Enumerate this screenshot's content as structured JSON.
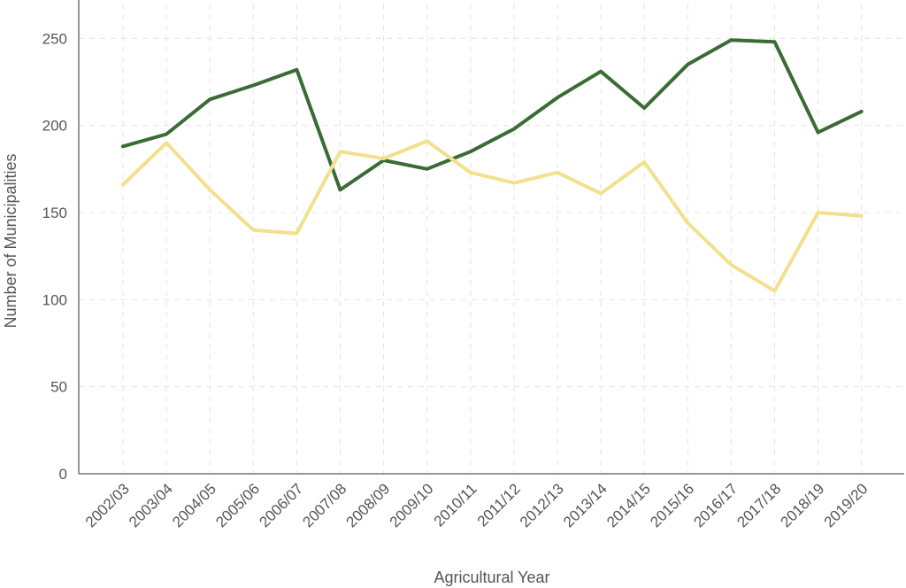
{
  "chart_data": {
    "type": "line",
    "xlabel": "Agricultural Year",
    "ylabel": "Number of Municipalities",
    "ylim": [
      0,
      270
    ],
    "yticks": [
      0,
      50,
      100,
      150,
      200,
      250
    ],
    "grid": true,
    "categories": [
      "2002/03",
      "2003/04",
      "2004/05",
      "2005/06",
      "2006/07",
      "2007/08",
      "2008/09",
      "2009/10",
      "2010/11",
      "2011/12",
      "2012/13",
      "2013/14",
      "2014/15",
      "2015/16",
      "2016/17",
      "2017/18",
      "2018/19",
      "2019/20"
    ],
    "series": [
      {
        "color": "#3a6b35",
        "values": [
          188,
          195,
          215,
          223,
          232,
          163,
          180,
          175,
          185,
          198,
          216,
          231,
          210,
          235,
          249,
          248,
          196,
          208
        ]
      },
      {
        "color": "#f3e08e",
        "values": [
          166,
          190,
          163,
          140,
          138,
          185,
          181,
          191,
          173,
          167,
          173,
          161,
          179,
          144,
          120,
          105,
          150,
          148
        ]
      }
    ]
  }
}
